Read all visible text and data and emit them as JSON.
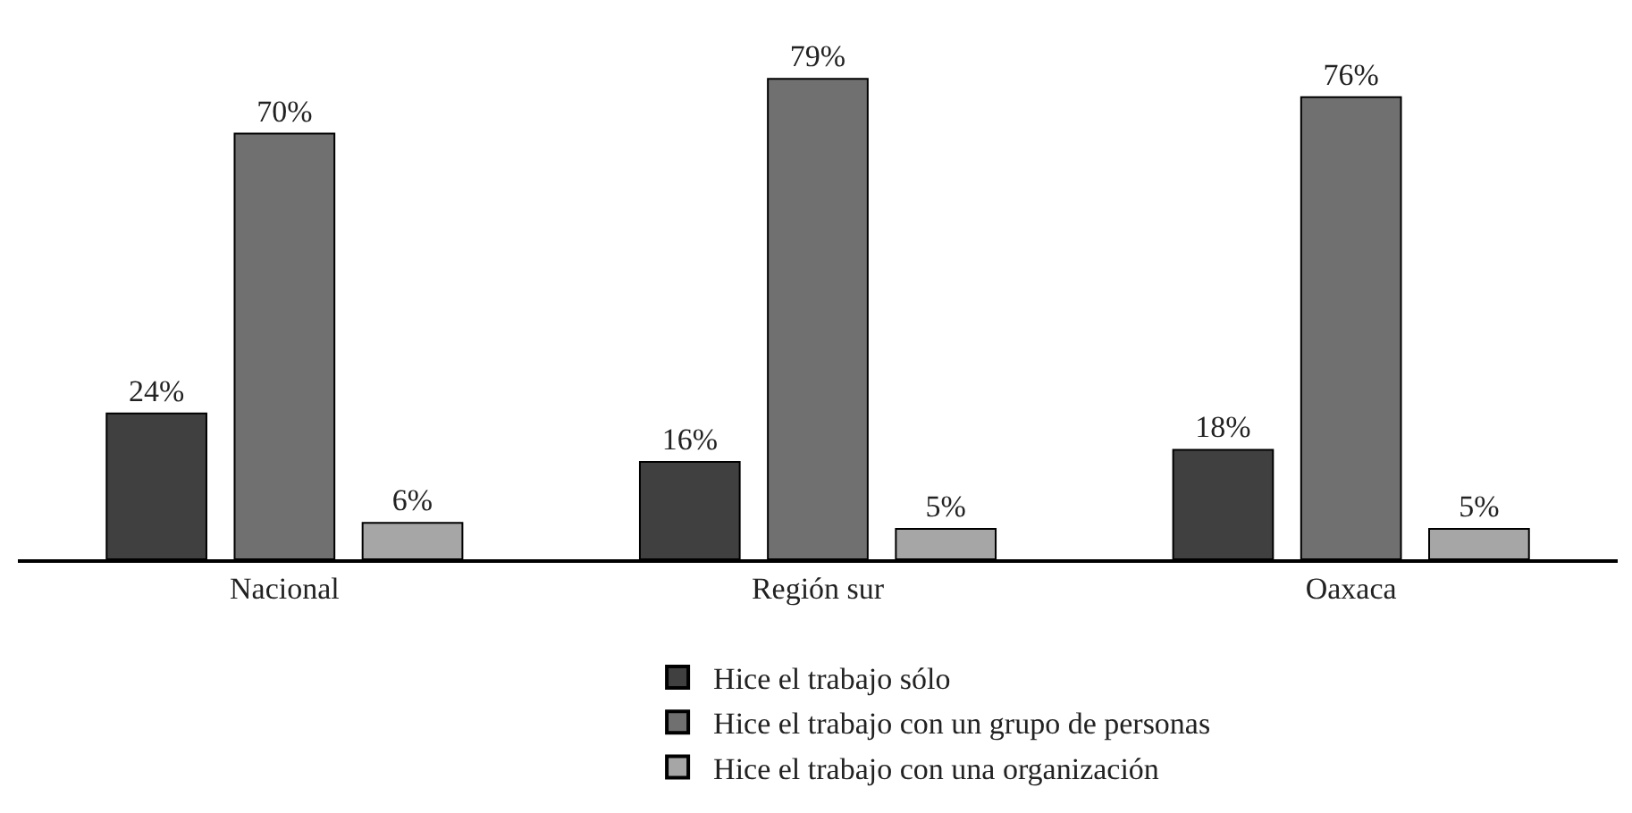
{
  "chart_data": {
    "type": "bar",
    "categories": [
      "Nacional",
      "Región sur",
      "Oaxaca"
    ],
    "series": [
      {
        "name": "Hice el trabajo sólo",
        "color": "#404040",
        "values": [
          24,
          16,
          18
        ],
        "value_labels": [
          "24%",
          "16%",
          "18%"
        ]
      },
      {
        "name": "Hice el trabajo con un grupo de personas",
        "color": "#707070",
        "values": [
          70,
          79,
          76
        ],
        "value_labels": [
          "70%",
          "79%",
          "76%"
        ]
      },
      {
        "name": "Hice el trabajo con una organización",
        "color": "#a6a6a6",
        "values": [
          6,
          5,
          5
        ],
        "value_labels": [
          "6%",
          "5%",
          "5%"
        ]
      }
    ],
    "legend": "bottom"
  }
}
